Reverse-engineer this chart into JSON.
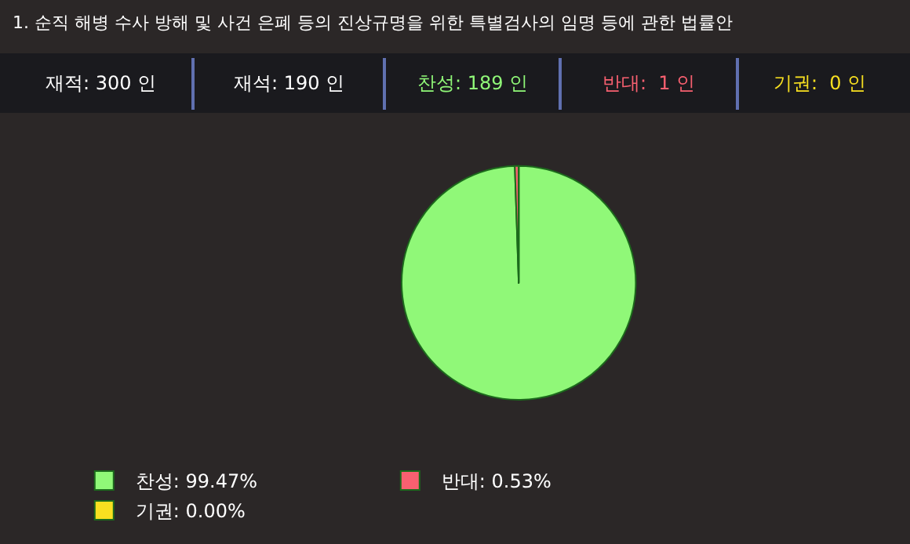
{
  "chart_data": {
    "type": "pie",
    "title": "1. 순직 해병 수사 방해 및 사건 은폐 등의 진상규명을 위한 특별검사의 임명 등에 관한 법률안",
    "annotations": [
      "재적: 300 인",
      "재석: 190 인",
      "찬성: 189 인",
      "반대:  1 인",
      "기권:  0 인"
    ],
    "categories": [
      "찬성",
      "반대",
      "기권"
    ],
    "values": [
      99.47,
      0.53,
      0.0
    ],
    "value_labels": [
      "99.47%",
      "0.53%",
      "0.00%"
    ],
    "colors": [
      "#90f878",
      "#f86070",
      "#f8e020"
    ],
    "legend": "bottom"
  }
}
